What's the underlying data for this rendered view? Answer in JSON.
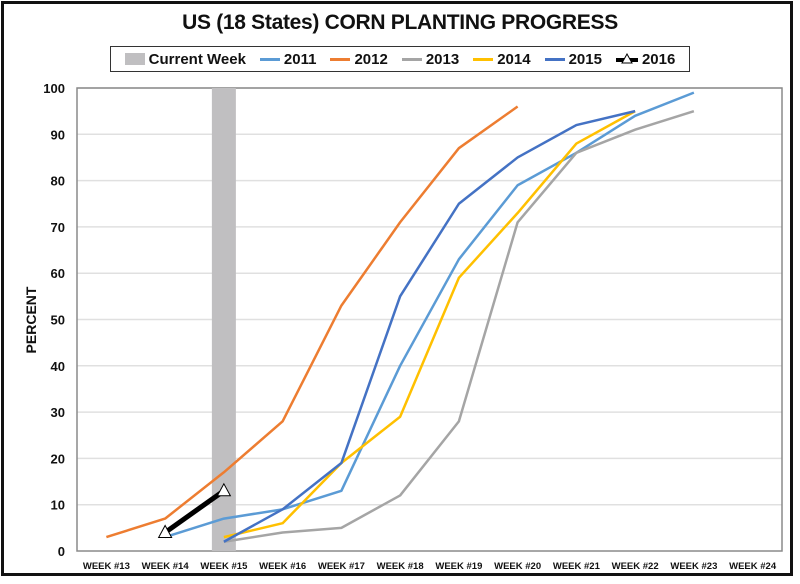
{
  "chart_data": {
    "type": "line",
    "title": "US (18 States) CORN PLANTING PROGRESS",
    "xlabel": "",
    "ylabel": "PERCENT",
    "ylim": [
      0,
      100
    ],
    "yticks": [
      "0",
      "10",
      "20",
      "30",
      "40",
      "50",
      "60",
      "70",
      "80",
      "90",
      "100"
    ],
    "categories": [
      "WEEK #13",
      "WEEK #14",
      "WEEK #15",
      "WEEK #16",
      "WEEK #17",
      "WEEK #18",
      "WEEK #19",
      "WEEK #20",
      "WEEK #21",
      "WEEK #22",
      "WEEK #23",
      "WEEK #24"
    ],
    "grid": true,
    "legend_position": "top",
    "current_week": {
      "name": "Current Week",
      "category": "WEEK #15",
      "color": "#c0bfc1"
    },
    "series": [
      {
        "name": "2011",
        "color": "#5b9bd5",
        "values": [
          null,
          3,
          7,
          9,
          13,
          40,
          63,
          79,
          86,
          94,
          99,
          null
        ]
      },
      {
        "name": "2012",
        "color": "#ed7d31",
        "values": [
          3,
          7,
          17,
          28,
          53,
          71,
          87,
          96,
          null,
          null,
          null,
          null
        ]
      },
      {
        "name": "2013",
        "color": "#a5a5a5",
        "values": [
          null,
          null,
          2,
          4,
          5,
          12,
          28,
          71,
          86,
          91,
          95,
          null
        ]
      },
      {
        "name": "2014",
        "color": "#ffc000",
        "values": [
          null,
          null,
          3,
          6,
          19,
          29,
          59,
          73,
          88,
          95,
          null,
          null
        ]
      },
      {
        "name": "2015",
        "color": "#4472c4",
        "values": [
          null,
          null,
          2,
          9,
          19,
          55,
          75,
          85,
          92,
          95,
          null,
          null
        ]
      },
      {
        "name": "2016",
        "color": "#000000",
        "marker": "triangle",
        "values": [
          null,
          4,
          13,
          null,
          null,
          null,
          null,
          null,
          null,
          null,
          null,
          null
        ]
      }
    ]
  }
}
